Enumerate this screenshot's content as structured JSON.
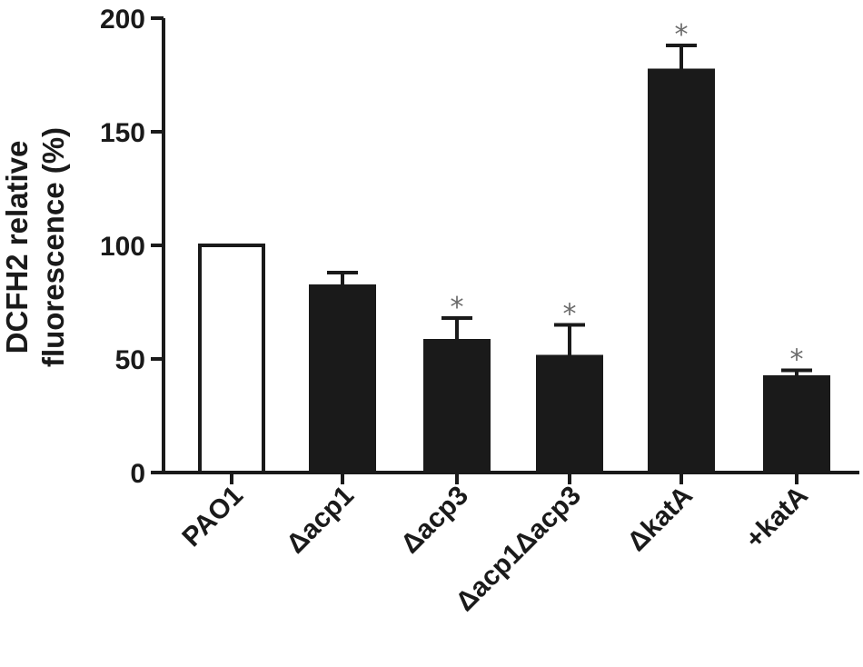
{
  "chart_data": {
    "type": "bar",
    "ylabel_lines": [
      "DCFH2 relative",
      "fluorescence (%)"
    ],
    "ylim": [
      0,
      200
    ],
    "yticks": [
      "0",
      "50",
      "100",
      "150",
      "200"
    ],
    "categories": [
      "PAO1",
      "Δacp1",
      "Δacp3",
      "Δacp1Δacp3",
      "ΔkatA",
      "+katA"
    ],
    "values": [
      100,
      82,
      58,
      51,
      177,
      42
    ],
    "errors": [
      0,
      6,
      10,
      14,
      11,
      3
    ],
    "significant": [
      false,
      false,
      true,
      true,
      true,
      true
    ],
    "significance_marker": "*",
    "fills": [
      "#ffffff",
      "#1a1a1a",
      "#1a1a1a",
      "#1a1a1a",
      "#1a1a1a",
      "#1a1a1a"
    ],
    "grid": false
  }
}
